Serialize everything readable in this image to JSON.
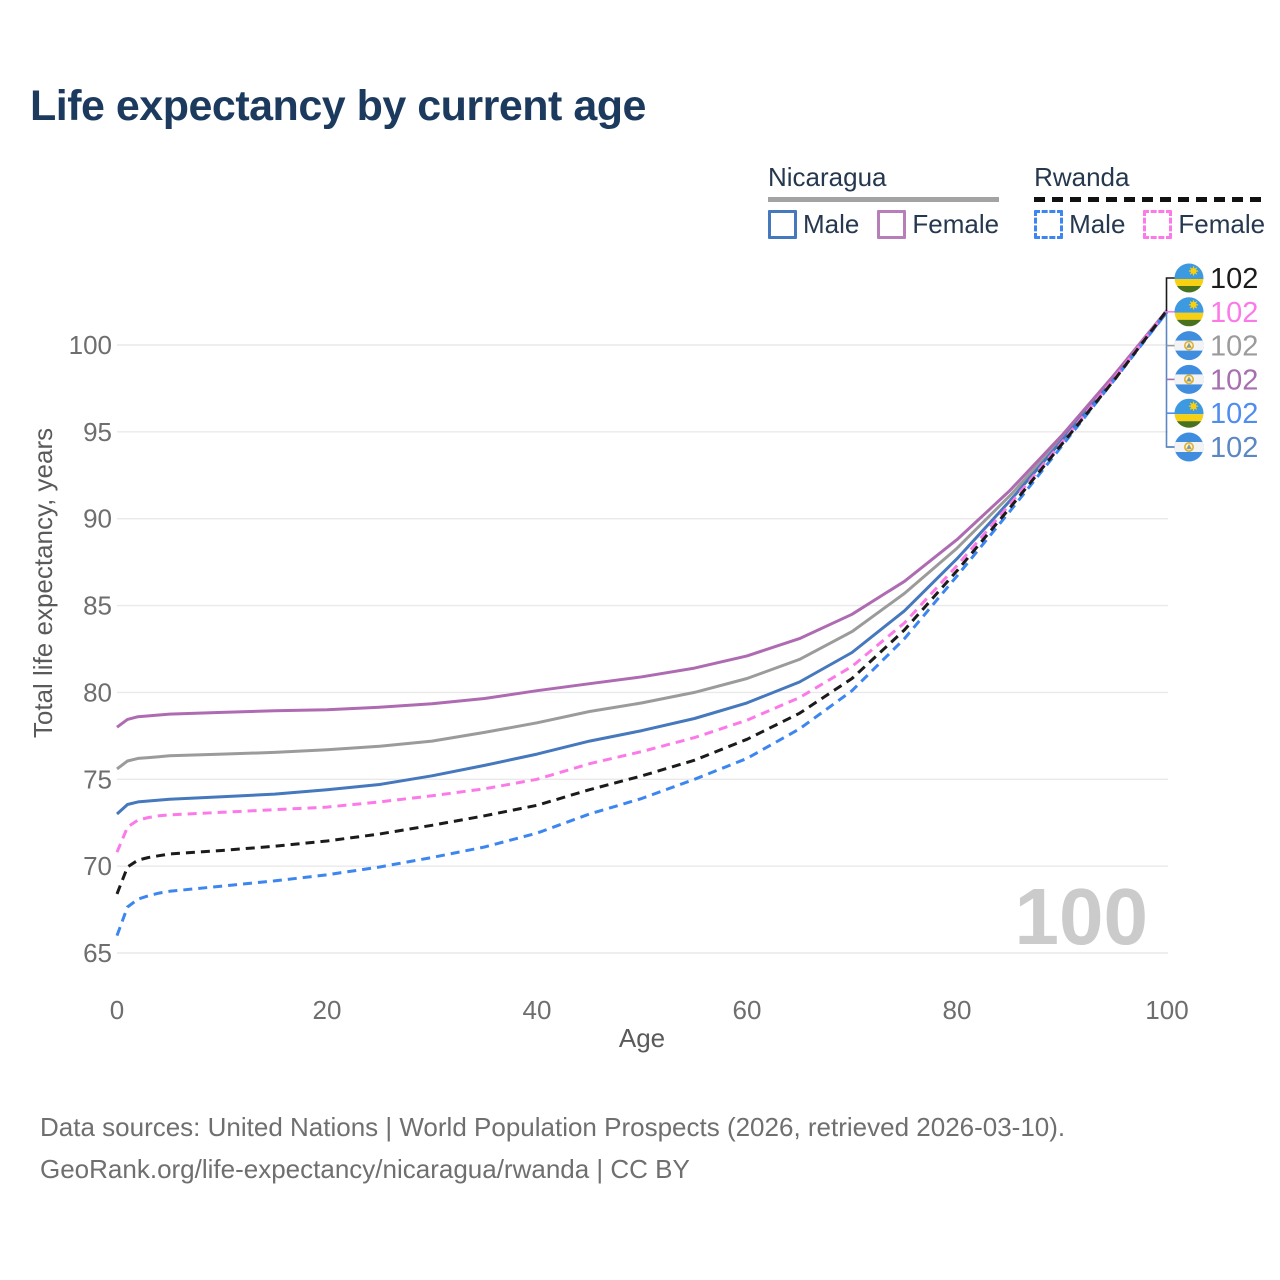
{
  "page": {
    "title": "Life expectancy by current age"
  },
  "legend": {
    "position": "top-right",
    "groups": [
      {
        "id": "nicaragua",
        "label": "Nicaragua",
        "line_style": "solid",
        "line_color": "#a3a3a3",
        "items": [
          {
            "label": "Male",
            "color": "#4678bd",
            "dash": false
          },
          {
            "label": "Female",
            "color": "#b67fba",
            "dash": false
          }
        ]
      },
      {
        "id": "rwanda",
        "label": "Rwanda",
        "line_style": "dashed",
        "line_color": "#111111",
        "items": [
          {
            "label": "Male",
            "color": "#3d86f0",
            "dash": true
          },
          {
            "label": "Female",
            "color": "#fc7ae8",
            "dash": true
          }
        ]
      }
    ]
  },
  "chart_data": {
    "type": "line",
    "title": "Life expectancy by current age",
    "xlabel": "Age",
    "ylabel": "Total life expectancy, years",
    "xlim": [
      0,
      100
    ],
    "ylim": [
      65,
      102
    ],
    "x_ticks": [
      0,
      20,
      40,
      60,
      80,
      100
    ],
    "y_ticks": [
      65,
      70,
      75,
      80,
      85,
      90,
      95,
      100
    ],
    "grid": "horizontal-only",
    "legend_position": "top-right",
    "watermark": "100",
    "ages": [
      0,
      1,
      2,
      3,
      4,
      5,
      10,
      15,
      20,
      25,
      30,
      35,
      40,
      45,
      50,
      55,
      60,
      65,
      70,
      75,
      80,
      85,
      90,
      95,
      100
    ],
    "series": [
      {
        "name": "Nicaragua Total",
        "country": "nicaragua",
        "sex": "total",
        "color": "#9b9b9b",
        "dashed": false,
        "values": [
          75.6,
          76.05,
          76.2,
          76.25,
          76.3,
          76.35,
          76.45,
          76.55,
          76.7,
          76.9,
          77.2,
          77.7,
          78.25,
          78.9,
          79.4,
          80.0,
          80.8,
          81.9,
          83.5,
          85.7,
          88.3,
          91.3,
          94.6,
          98.2,
          102.0
        ]
      },
      {
        "name": "Nicaragua Male",
        "country": "nicaragua",
        "sex": "male",
        "color": "#4678bd",
        "dashed": false,
        "values": [
          73.0,
          73.55,
          73.7,
          73.75,
          73.8,
          73.85,
          74.0,
          74.15,
          74.4,
          74.7,
          75.2,
          75.8,
          76.45,
          77.2,
          77.8,
          78.5,
          79.4,
          80.6,
          82.3,
          84.7,
          87.7,
          91.0,
          94.5,
          98.1,
          101.9
        ]
      },
      {
        "name": "Nicaragua Female",
        "country": "nicaragua",
        "sex": "female",
        "color": "#ae6bb2",
        "dashed": false,
        "values": [
          78.0,
          78.45,
          78.6,
          78.65,
          78.7,
          78.75,
          78.85,
          78.95,
          79.0,
          79.15,
          79.35,
          79.65,
          80.1,
          80.5,
          80.9,
          81.4,
          82.1,
          83.1,
          84.5,
          86.4,
          88.8,
          91.6,
          94.8,
          98.3,
          102.0
        ]
      },
      {
        "name": "Rwanda Male",
        "country": "rwanda",
        "sex": "male",
        "color": "#3d86f0",
        "dashed": true,
        "values": [
          66.0,
          67.65,
          68.1,
          68.3,
          68.45,
          68.55,
          68.85,
          69.15,
          69.5,
          69.95,
          70.5,
          71.1,
          71.9,
          73.0,
          73.9,
          75.0,
          76.2,
          77.9,
          80.1,
          83.1,
          86.7,
          90.4,
          94.2,
          98.0,
          101.9
        ]
      },
      {
        "name": "Rwanda Female",
        "country": "rwanda",
        "sex": "female",
        "color": "#fc7ae8",
        "dashed": true,
        "values": [
          70.8,
          72.25,
          72.65,
          72.8,
          72.9,
          72.95,
          73.1,
          73.25,
          73.4,
          73.7,
          74.05,
          74.45,
          75.0,
          75.9,
          76.6,
          77.4,
          78.4,
          79.7,
          81.5,
          84.0,
          87.3,
          90.8,
          94.4,
          98.1,
          102.0
        ]
      },
      {
        "name": "Rwanda Total",
        "country": "rwanda",
        "sex": "total",
        "color": "#1b1b1b",
        "dashed": true,
        "values": [
          68.4,
          69.95,
          70.35,
          70.5,
          70.6,
          70.7,
          70.9,
          71.15,
          71.45,
          71.85,
          72.35,
          72.9,
          73.5,
          74.4,
          75.2,
          76.1,
          77.3,
          78.8,
          80.8,
          83.6,
          87.0,
          90.6,
          94.3,
          98.0,
          102.0
        ]
      }
    ],
    "end_labels": [
      {
        "series": "Rwanda Total",
        "flag": "rwanda",
        "value": "102",
        "color": "#1b1b1b"
      },
      {
        "series": "Rwanda Female",
        "flag": "rwanda",
        "value": "102",
        "color": "#fc7ae8"
      },
      {
        "series": "Nicaragua Total",
        "flag": "nicaragua",
        "value": "102",
        "color": "#9b9b9b"
      },
      {
        "series": "Nicaragua Female",
        "flag": "nicaragua",
        "value": "102",
        "color": "#a76fb0"
      },
      {
        "series": "Rwanda Male",
        "flag": "rwanda",
        "value": "102",
        "color": "#4f8df0"
      },
      {
        "series": "Nicaragua Male",
        "flag": "nicaragua",
        "value": "102",
        "color": "#5b87c3"
      }
    ]
  },
  "footer": {
    "line1": "Data sources: United Nations | World Population Prospects (2026, retrieved 2026-03-10).",
    "line2": "GeoRank.org/life-expectancy/nicaragua/rwanda | CC BY"
  }
}
